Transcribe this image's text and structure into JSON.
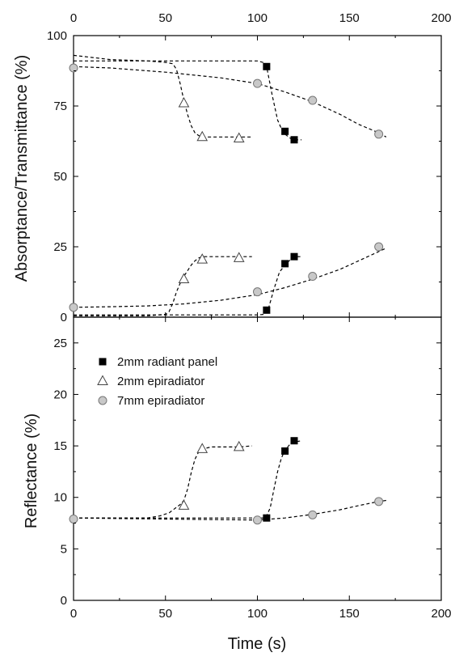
{
  "chart_data": {
    "type": "scatter",
    "xlabel": "Time (s)",
    "x_ticks": [
      0,
      50,
      100,
      150,
      200
    ],
    "xlim": [
      0,
      200
    ],
    "legend": {
      "placement": "top-left of lower panel",
      "entries": [
        {
          "label": "2mm radiant panel",
          "marker": "filled-square"
        },
        {
          "label": "2mm epiradiator",
          "marker": "open-triangle"
        },
        {
          "label": "7mm epiradiator",
          "marker": "gray-circle"
        }
      ]
    },
    "panels": [
      {
        "id": "top",
        "ylabel": "Absorptance/Transmittance (%)",
        "ylim": [
          0,
          100
        ],
        "y_ticks": [
          0,
          25,
          50,
          75,
          100
        ],
        "series": [
          {
            "name": "2mm radiant panel",
            "marker": "square",
            "x": [
              105,
              115,
              120
            ],
            "y": [
              89,
              66,
              63
            ]
          },
          {
            "name": "2mm radiant panel",
            "marker": "square",
            "x": [
              105,
              115,
              120
            ],
            "y": [
              2.5,
              19,
              21.5
            ]
          },
          {
            "name": "2mm epiradiator",
            "marker": "triangle",
            "x": [
              60,
              70,
              90
            ],
            "y": [
              76,
              64,
              63.5
            ]
          },
          {
            "name": "2mm epiradiator",
            "marker": "triangle",
            "x": [
              60,
              70,
              90
            ],
            "y": [
              13.5,
              20.5,
              21
            ]
          },
          {
            "name": "7mm epiradiator",
            "marker": "circle",
            "x": [
              0,
              100,
              130,
              166
            ],
            "y": [
              88.5,
              83,
              77,
              65
            ]
          },
          {
            "name": "7mm epiradiator",
            "marker": "circle",
            "x": [
              0,
              100,
              130,
              166
            ],
            "y": [
              3.5,
              9,
              14.5,
              25
            ]
          }
        ],
        "fits": [
          {
            "marker": "square",
            "x": [
              0,
              20,
              40,
              60,
              80,
              95,
              100,
              103,
              105,
              108,
              111,
              113,
              115,
              118,
              121,
              124
            ],
            "y": [
              91,
              91,
              91,
              91,
              91,
              91,
              91,
              90.5,
              89,
              79,
              70,
              67,
              65,
              63.5,
              63,
              63
            ]
          },
          {
            "marker": "square",
            "x": [
              0,
              20,
              40,
              60,
              80,
              100,
              104,
              106,
              109,
              112,
              115,
              118,
              121,
              124
            ],
            "y": [
              0.8,
              0.8,
              0.8,
              0.8,
              0.8,
              0.8,
              1,
              3,
              10,
              16,
              18.5,
              20.5,
              21.5,
              21.5
            ]
          },
          {
            "marker": "triangle",
            "x": [
              0,
              20,
              40,
              50,
              54,
              56,
              58,
              60,
              62,
              64,
              66,
              68,
              70,
              74,
              80,
              90,
              97
            ],
            "y": [
              93,
              91.5,
              91,
              90.5,
              90,
              88,
              83,
              77,
              72,
              68,
              65.5,
              64.5,
              64,
              64,
              64,
              64,
              64
            ]
          },
          {
            "marker": "triangle",
            "x": [
              0,
              20,
              40,
              46,
              50,
              52,
              54,
              56,
              58,
              60,
              62,
              64,
              66,
              68,
              70,
              80,
              90,
              97
            ],
            "y": [
              0.5,
              0.5,
              0.5,
              0.8,
              1,
              2,
              5,
              9,
              12,
              14.5,
              16.5,
              18.5,
              20,
              21,
              21.5,
              21.5,
              21.5,
              21.5
            ]
          },
          {
            "marker": "circle",
            "x": [
              0,
              20,
              50,
              80,
              100,
              115,
              130,
              145,
              155,
              166,
              170
            ],
            "y": [
              89,
              88.5,
              87,
              85,
              83,
              80,
              76.5,
              72,
              68.5,
              65.5,
              64
            ]
          },
          {
            "marker": "circle",
            "x": [
              0,
              20,
              40,
              60,
              80,
              100,
              115,
              130,
              145,
              160,
              170
            ],
            "y": [
              3.5,
              3.7,
              4,
              4.7,
              6,
              8,
              10.5,
              13.5,
              17,
              21.5,
              24.5
            ]
          }
        ]
      },
      {
        "id": "bottom",
        "ylabel": "Reflectance (%)",
        "ylim": [
          0,
          27.5
        ],
        "y_ticks": [
          0,
          5,
          10,
          15,
          20,
          25
        ],
        "series": [
          {
            "name": "2mm radiant panel",
            "marker": "square",
            "x": [
              105,
              115,
              120
            ],
            "y": [
              8,
              14.5,
              15.5
            ]
          },
          {
            "name": "2mm epiradiator",
            "marker": "triangle",
            "x": [
              60,
              70,
              90
            ],
            "y": [
              9.2,
              14.7,
              14.9
            ]
          },
          {
            "name": "7mm epiradiator",
            "marker": "circle",
            "x": [
              0,
              100,
              130,
              166
            ],
            "y": [
              7.9,
              7.8,
              8.3,
              9.6
            ]
          }
        ],
        "fits": [
          {
            "marker": "square",
            "x": [
              0,
              50,
              100,
              103,
              105,
              107,
              109,
              111,
              113,
              115,
              118,
              121,
              124
            ],
            "y": [
              8,
              8,
              8,
              8,
              8.2,
              9,
              10.8,
              12.5,
              13.8,
              14.6,
              15.2,
              15.4,
              15.5
            ]
          },
          {
            "marker": "triangle",
            "x": [
              0,
              40,
              47,
              52,
              55,
              58,
              60,
              62,
              64,
              66,
              68,
              70,
              75,
              80,
              90,
              97
            ],
            "y": [
              8,
              8,
              8.2,
              8.5,
              8.9,
              9.3,
              9.7,
              10.8,
              12.4,
              13.7,
              14.4,
              14.7,
              14.9,
              14.9,
              14.9,
              15
            ]
          },
          {
            "marker": "circle",
            "x": [
              0,
              50,
              100,
              115,
              130,
              145,
              155,
              166,
              170
            ],
            "y": [
              8,
              7.9,
              7.8,
              8,
              8.35,
              8.8,
              9.2,
              9.6,
              9.7
            ]
          }
        ]
      }
    ]
  }
}
